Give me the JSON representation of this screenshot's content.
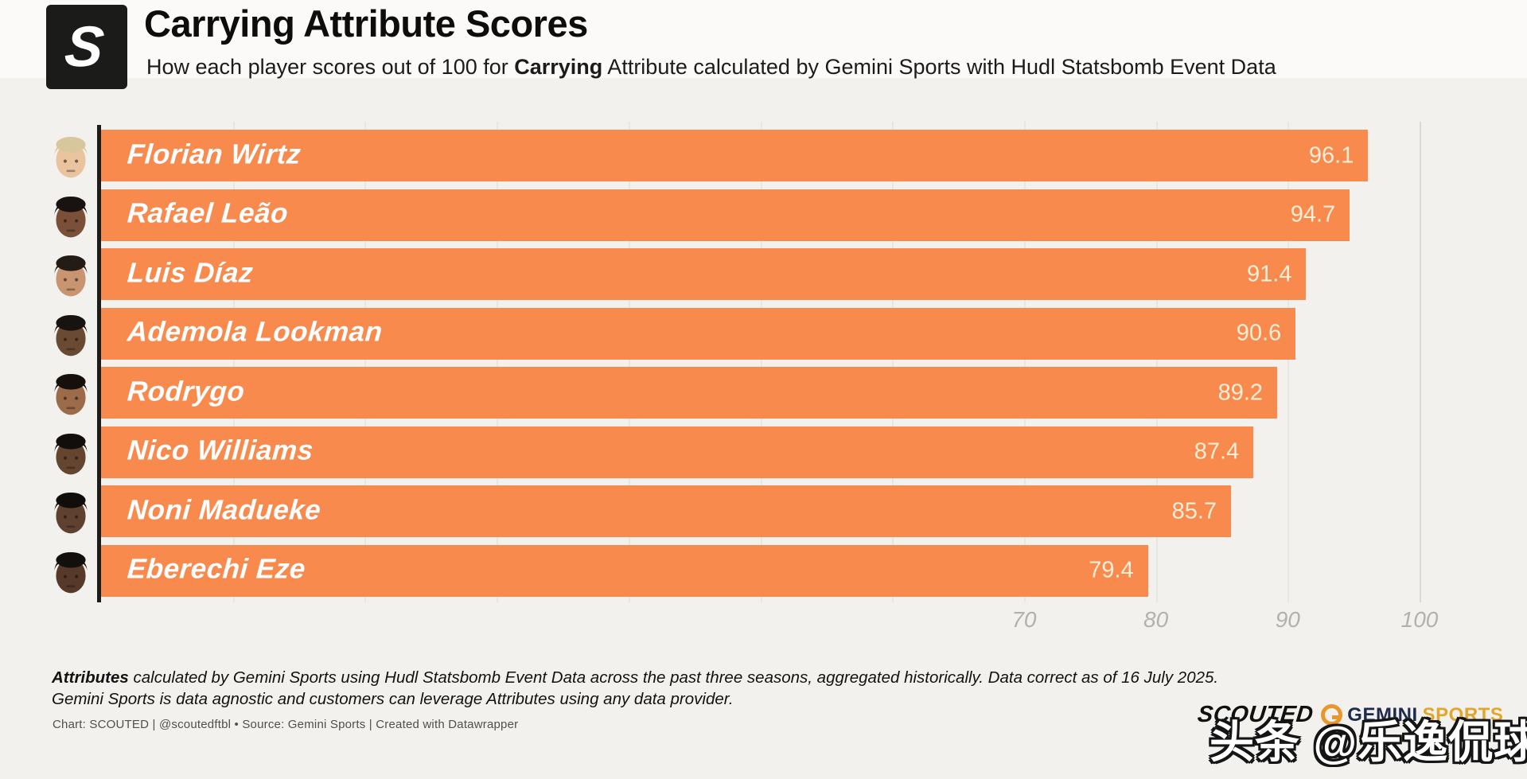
{
  "header": {
    "logo_letter": "S",
    "title": "Carrying Attribute Scores",
    "subtitle_prefix": "How each player scores out of 100 for ",
    "subtitle_bold": "Carrying",
    "subtitle_suffix": " Attribute calculated by Gemini Sports with Hudl Statsbomb Event Data"
  },
  "chart_data": {
    "type": "bar",
    "orientation": "horizontal",
    "title": "Carrying Attribute Scores",
    "categories": [
      "Florian Wirtz",
      "Rafael Leão",
      "Luis Díaz",
      "Ademola Lookman",
      "Rodrygo",
      "Nico Williams",
      "Noni Madueke",
      "Eberechi Eze"
    ],
    "values": [
      96.1,
      94.7,
      91.4,
      90.6,
      89.2,
      87.4,
      85.7,
      79.4
    ],
    "value_labels": [
      "96.1",
      "94.7",
      "91.4",
      "90.6",
      "89.2",
      "87.4",
      "85.7",
      "79.4"
    ],
    "xlim": [
      0,
      108
    ],
    "xticks": [
      70,
      80,
      90,
      100
    ],
    "gridline_step": 10,
    "grid": true,
    "bar_color": "#f88a4d",
    "value_label_color": "#fdeed8",
    "axis_label_color": "#b3b1ad",
    "legend_position": "none"
  },
  "players": [
    {
      "name": "Florian Wirtz",
      "value": "96.1",
      "avatar": {
        "skin": "#e9c49f",
        "hair": "#d8c69c"
      }
    },
    {
      "name": "Rafael Leão",
      "value": "94.7",
      "avatar": {
        "skin": "#7a5038",
        "hair": "#181310"
      }
    },
    {
      "name": "Luis Díaz",
      "value": "91.4",
      "avatar": {
        "skin": "#c99571",
        "hair": "#241b15"
      }
    },
    {
      "name": "Ademola Lookman",
      "value": "90.6",
      "avatar": {
        "skin": "#6b4a33",
        "hair": "#191310"
      }
    },
    {
      "name": "Rodrygo",
      "value": "89.2",
      "avatar": {
        "skin": "#9c6b49",
        "hair": "#15100c"
      }
    },
    {
      "name": "Nico Williams",
      "value": "87.4",
      "avatar": {
        "skin": "#64452f",
        "hair": "#120e0b"
      }
    },
    {
      "name": "Noni Madueke",
      "value": "85.7",
      "avatar": {
        "skin": "#5f4130",
        "hair": "#100d0a"
      }
    },
    {
      "name": "Eberechi Eze",
      "value": "79.4",
      "avatar": {
        "skin": "#57392a",
        "hair": "#12100d"
      }
    }
  ],
  "notes": {
    "line1_bold": "Attributes",
    "line1_rest": " calculated by Gemini Sports using Hudl Statsbomb Event Data across the past three seasons, aggregated historically. Data correct as of 16 July 2025.",
    "line2": "Gemini Sports is data agnostic and customers can leverage Attributes using any data provider."
  },
  "credit": "Chart: SCOUTED | @scoutedftbl • Source: Gemini Sports | Created with Datawrapper",
  "branding": {
    "scouted": "SCOUTED",
    "gemini": "GEMINI",
    "sports": "SPORTS",
    "watermark": "头条 @乐逸侃球"
  }
}
